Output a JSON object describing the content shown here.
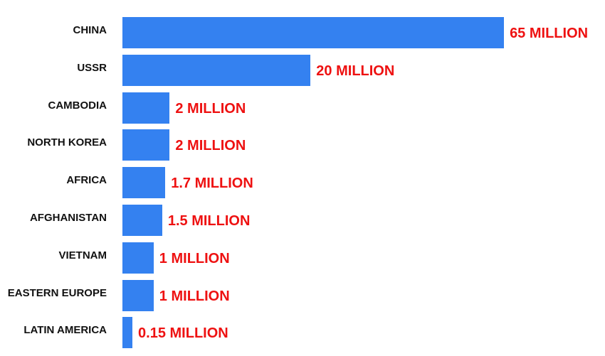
{
  "chart_data": {
    "type": "bar",
    "orientation": "horizontal",
    "categories": [
      "CHINA",
      "USSR",
      "CAMBODIA",
      "NORTH KOREA",
      "AFRICA",
      "AFGHANISTAN",
      "VIETNAM",
      "EASTERN EUROPE",
      "LATIN AMERICA"
    ],
    "values": [
      65,
      20,
      2,
      2,
      1.7,
      1.5,
      1,
      1,
      0.15
    ],
    "value_labels": [
      "65 MILLION",
      "20 MILLION",
      "2 MILLION",
      "2 MILLION",
      "1.7 MILLION",
      "1.5 MILLION",
      "1 MILLION",
      "1 MILLION",
      "0.15 MILLION"
    ],
    "unit": "MILLION",
    "grid": false,
    "legend": "none",
    "colors": {
      "bar": "#3481f0",
      "value_label": "#ee1111",
      "category_label": "#111111"
    }
  }
}
